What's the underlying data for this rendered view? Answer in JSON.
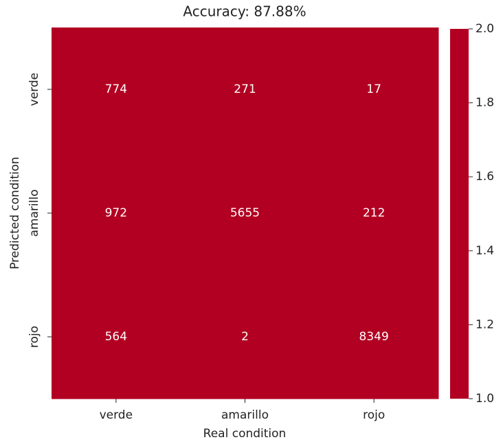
{
  "chart_data": {
    "type": "heatmap",
    "title": "Accuracy: 87.88%",
    "xlabel": "Real condition",
    "ylabel": "Predicted condition",
    "x_categories": [
      "verde",
      "amarillo",
      "rojo"
    ],
    "y_categories": [
      "verde",
      "amarillo",
      "rojo"
    ],
    "values": [
      [
        774,
        271,
        17
      ],
      [
        972,
        5655,
        212
      ],
      [
        564,
        2,
        8349
      ]
    ],
    "color": "#b20022",
    "colorbar": {
      "lim": [
        1,
        2
      ],
      "ticks": [
        {
          "value": 1,
          "label": "1.0"
        },
        1.2,
        1.4,
        1.6,
        1.8,
        {
          "value": 2,
          "label": "2.0"
        }
      ]
    }
  }
}
